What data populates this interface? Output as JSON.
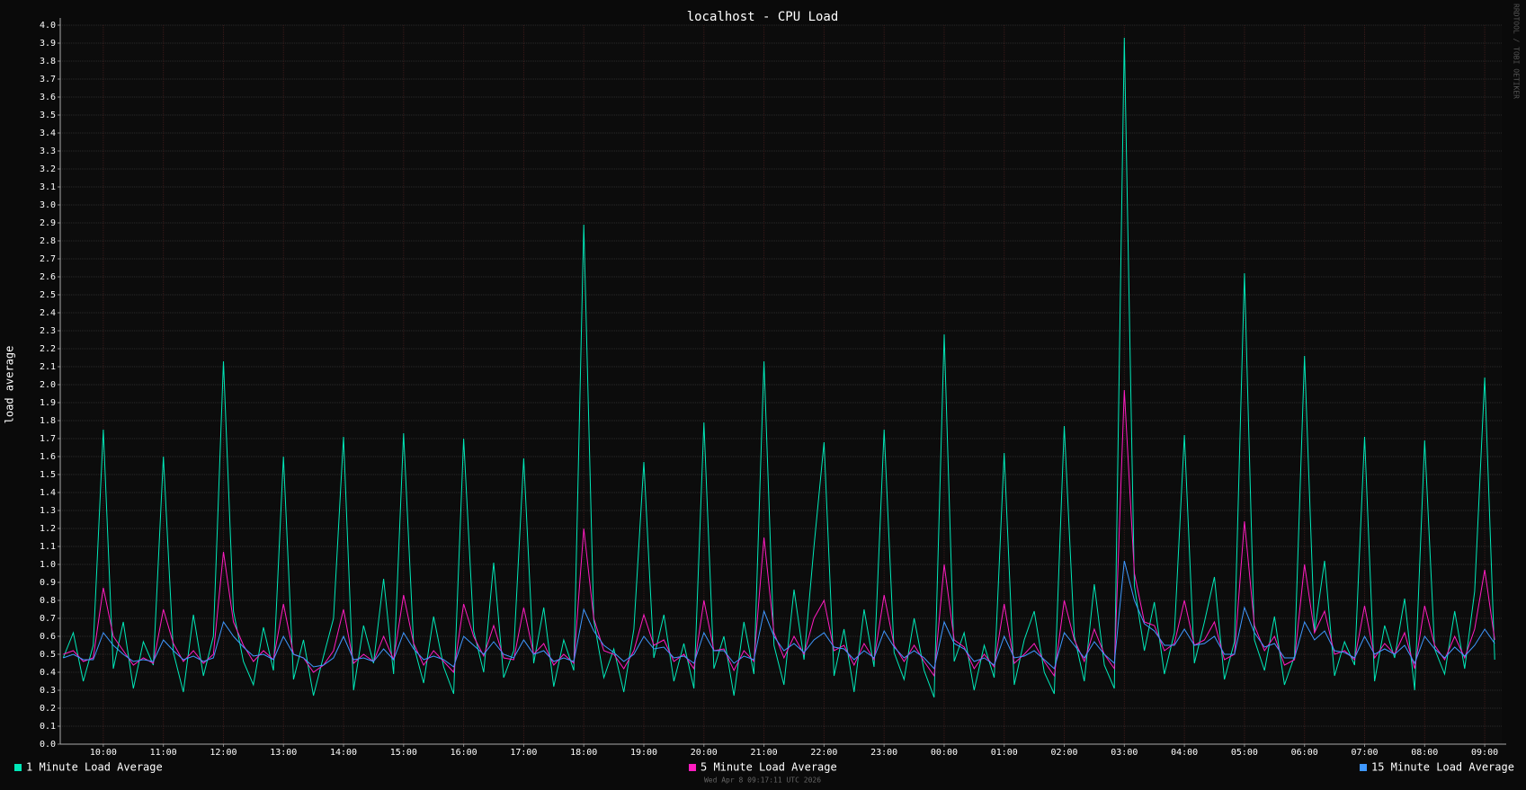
{
  "chart_data": {
    "type": "line",
    "title": "localhost - CPU Load",
    "y_label": "load average",
    "watermark": "RRDTOOL / TOBI OETIKER",
    "timestamp": "Wed Apr  8 09:17:11 UTC 2026",
    "grid": true,
    "categories": [
      null,
      null,
      null,
      null,
      "10:00",
      null,
      null,
      null,
      null,
      null,
      "11:00",
      null,
      null,
      null,
      null,
      null,
      "12:00",
      null,
      null,
      null,
      null,
      null,
      "13:00",
      null,
      null,
      null,
      null,
      null,
      "14:00",
      null,
      null,
      null,
      null,
      null,
      "15:00",
      null,
      null,
      null,
      null,
      null,
      "16:00",
      null,
      null,
      null,
      null,
      null,
      "17:00",
      null,
      null,
      null,
      null,
      null,
      "18:00",
      null,
      null,
      null,
      null,
      null,
      "19:00",
      null,
      null,
      null,
      null,
      null,
      "20:00",
      null,
      null,
      null,
      null,
      null,
      "21:00",
      null,
      null,
      null,
      null,
      null,
      "22:00",
      null,
      null,
      null,
      null,
      null,
      "23:00",
      null,
      null,
      null,
      null,
      null,
      "00:00",
      null,
      null,
      null,
      null,
      null,
      "01:00",
      null,
      null,
      null,
      null,
      null,
      "02:00",
      null,
      null,
      null,
      null,
      null,
      "03:00",
      null,
      null,
      null,
      null,
      null,
      "04:00",
      null,
      null,
      null,
      null,
      null,
      "05:00",
      null,
      null,
      null,
      null,
      null,
      "06:00",
      null,
      null,
      null,
      null,
      null,
      "07:00",
      null,
      null,
      null,
      null,
      null,
      "08:00",
      null,
      null,
      null,
      null,
      null,
      "09:00",
      null
    ],
    "ylim": [
      0,
      4
    ],
    "yticks": [
      {
        "value": 0,
        "label": "0.0"
      },
      0.1,
      0.2,
      0.3,
      0.4,
      0.5,
      0.6,
      0.7,
      0.8,
      0.9,
      {
        "value": 1,
        "label": "1.0"
      },
      1.1,
      1.2,
      1.3,
      1.4,
      1.5,
      1.6,
      1.7,
      1.8,
      1.9,
      {
        "value": 2,
        "label": "2.0"
      },
      2.1,
      2.2,
      2.3,
      2.4,
      2.5,
      2.6,
      2.7,
      2.8,
      2.9,
      {
        "value": 3,
        "label": "3.0"
      },
      3.1,
      3.2,
      3.3,
      3.4,
      3.5,
      3.6,
      3.7,
      3.8,
      3.9,
      {
        "value": 4,
        "label": "4.0"
      }
    ],
    "series": [
      {
        "name": "1 Minute Load Average",
        "color": "#00e8b8",
        "values": [
          0.48,
          0.62,
          0.35,
          0.55,
          1.75,
          0.42,
          0.68,
          0.31,
          0.57,
          0.44,
          1.6,
          0.51,
          0.29,
          0.72,
          0.38,
          0.6,
          2.13,
          0.74,
          0.46,
          0.33,
          0.65,
          0.41,
          1.6,
          0.36,
          0.58,
          0.27,
          0.49,
          0.7,
          1.71,
          0.3,
          0.66,
          0.45,
          0.92,
          0.39,
          1.73,
          0.55,
          0.34,
          0.71,
          0.43,
          0.28,
          1.7,
          0.63,
          0.4,
          1.01,
          0.37,
          0.52,
          1.59,
          0.45,
          0.76,
          0.32,
          0.58,
          0.41,
          2.89,
          0.69,
          0.37,
          0.53,
          0.29,
          0.64,
          1.57,
          0.48,
          0.72,
          0.35,
          0.56,
          0.31,
          1.79,
          0.42,
          0.6,
          0.27,
          0.68,
          0.39,
          2.13,
          0.55,
          0.33,
          0.86,
          0.47,
          1.1,
          1.68,
          0.38,
          0.64,
          0.29,
          0.75,
          0.43,
          1.75,
          0.51,
          0.36,
          0.7,
          0.41,
          0.26,
          2.28,
          0.46,
          0.62,
          0.3,
          0.55,
          0.37,
          1.62,
          0.33,
          0.58,
          0.74,
          0.4,
          0.28,
          1.77,
          0.6,
          0.35,
          0.89,
          0.44,
          0.31,
          3.93,
          0.88,
          0.52,
          0.79,
          0.39,
          0.62,
          1.72,
          0.45,
          0.68,
          0.93,
          0.36,
          0.57,
          2.62,
          0.58,
          0.41,
          0.71,
          0.33,
          0.49,
          2.16,
          0.62,
          1.02,
          0.38,
          0.57,
          0.44,
          1.71,
          0.35,
          0.66,
          0.48,
          0.81,
          0.3,
          1.69,
          0.53,
          0.39,
          0.74,
          0.42,
          0.85,
          2.04,
          0.47
        ]
      },
      {
        "name": "5 Minute Load Average",
        "color": "#ff1cc0",
        "values": [
          0.5,
          0.52,
          0.46,
          0.48,
          0.87,
          0.6,
          0.52,
          0.44,
          0.48,
          0.45,
          0.75,
          0.56,
          0.46,
          0.52,
          0.45,
          0.5,
          1.07,
          0.68,
          0.55,
          0.46,
          0.52,
          0.47,
          0.78,
          0.5,
          0.48,
          0.4,
          0.44,
          0.52,
          0.75,
          0.45,
          0.5,
          0.46,
          0.6,
          0.47,
          0.83,
          0.56,
          0.44,
          0.52,
          0.46,
          0.4,
          0.78,
          0.6,
          0.49,
          0.66,
          0.48,
          0.47,
          0.76,
          0.5,
          0.56,
          0.44,
          0.5,
          0.45,
          1.2,
          0.7,
          0.52,
          0.5,
          0.42,
          0.52,
          0.72,
          0.55,
          0.58,
          0.46,
          0.5,
          0.42,
          0.8,
          0.52,
          0.53,
          0.41,
          0.52,
          0.46,
          1.15,
          0.62,
          0.48,
          0.6,
          0.5,
          0.7,
          0.8,
          0.52,
          0.55,
          0.44,
          0.56,
          0.47,
          0.83,
          0.55,
          0.46,
          0.55,
          0.46,
          0.38,
          1.0,
          0.58,
          0.54,
          0.42,
          0.5,
          0.43,
          0.78,
          0.45,
          0.5,
          0.56,
          0.46,
          0.38,
          0.8,
          0.58,
          0.46,
          0.64,
          0.5,
          0.42,
          1.97,
          0.95,
          0.68,
          0.66,
          0.52,
          0.56,
          0.8,
          0.55,
          0.58,
          0.68,
          0.47,
          0.5,
          1.24,
          0.66,
          0.52,
          0.6,
          0.44,
          0.47,
          1.0,
          0.62,
          0.74,
          0.5,
          0.52,
          0.47,
          0.77,
          0.48,
          0.56,
          0.5,
          0.62,
          0.42,
          0.77,
          0.55,
          0.47,
          0.6,
          0.48,
          0.64,
          0.97,
          0.58
        ]
      },
      {
        "name": "15 Minute Load Average",
        "color": "#3f98ff",
        "values": [
          0.48,
          0.5,
          0.47,
          0.47,
          0.62,
          0.55,
          0.5,
          0.46,
          0.47,
          0.46,
          0.58,
          0.52,
          0.47,
          0.49,
          0.46,
          0.48,
          0.68,
          0.6,
          0.54,
          0.49,
          0.5,
          0.47,
          0.6,
          0.5,
          0.48,
          0.43,
          0.44,
          0.48,
          0.6,
          0.47,
          0.48,
          0.46,
          0.53,
          0.47,
          0.62,
          0.53,
          0.47,
          0.49,
          0.47,
          0.43,
          0.6,
          0.55,
          0.5,
          0.57,
          0.5,
          0.48,
          0.58,
          0.5,
          0.52,
          0.46,
          0.48,
          0.46,
          0.75,
          0.63,
          0.55,
          0.51,
          0.46,
          0.5,
          0.6,
          0.53,
          0.54,
          0.48,
          0.49,
          0.45,
          0.62,
          0.52,
          0.52,
          0.45,
          0.49,
          0.47,
          0.74,
          0.6,
          0.52,
          0.56,
          0.51,
          0.58,
          0.62,
          0.54,
          0.53,
          0.47,
          0.52,
          0.48,
          0.63,
          0.54,
          0.48,
          0.52,
          0.48,
          0.42,
          0.68,
          0.56,
          0.53,
          0.46,
          0.48,
          0.44,
          0.6,
          0.48,
          0.49,
          0.52,
          0.47,
          0.42,
          0.62,
          0.55,
          0.48,
          0.57,
          0.5,
          0.45,
          1.02,
          0.8,
          0.67,
          0.63,
          0.55,
          0.55,
          0.64,
          0.55,
          0.56,
          0.6,
          0.5,
          0.5,
          0.76,
          0.62,
          0.54,
          0.56,
          0.48,
          0.48,
          0.68,
          0.58,
          0.63,
          0.52,
          0.51,
          0.48,
          0.6,
          0.5,
          0.53,
          0.5,
          0.55,
          0.45,
          0.6,
          0.53,
          0.48,
          0.54,
          0.49,
          0.55,
          0.64,
          0.56
        ]
      }
    ]
  }
}
